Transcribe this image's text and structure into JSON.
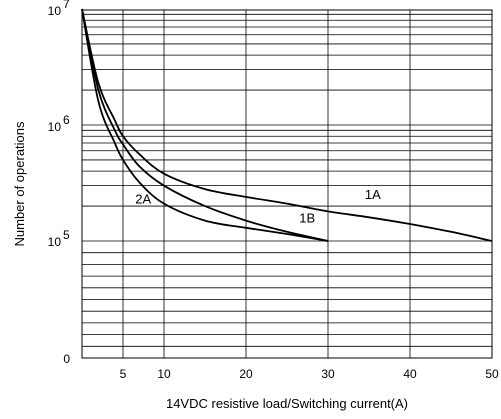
{
  "chart_data": {
    "type": "line",
    "xlabel": "14VDC resistive load/Switching current(A)",
    "ylabel": "Number of operations",
    "xlim": [
      0,
      50
    ],
    "x_ticks": [
      "5",
      "10",
      "20",
      "30",
      "40",
      "50"
    ],
    "y_scale": "log",
    "y_ticks": [
      {
        "base": "10",
        "exp": "7"
      },
      {
        "base": "10",
        "exp": "6"
      },
      {
        "base": "10",
        "exp": "5"
      }
    ],
    "y_zero_label": "0",
    "grid": true,
    "series": [
      {
        "name": "1A",
        "x": [
          0,
          2,
          4,
          5,
          7,
          10,
          15,
          20,
          25,
          30,
          35,
          40,
          45,
          50
        ],
        "y": [
          10000000,
          2300000,
          1100000,
          800000,
          560000,
          380000,
          280000,
          240000,
          210000,
          180000,
          160000,
          140000,
          120000,
          100000
        ]
      },
      {
        "name": "1B",
        "x": [
          0,
          2,
          4,
          5,
          7,
          10,
          15,
          20,
          25,
          30
        ],
        "y": [
          10000000,
          2000000,
          900000,
          680000,
          440000,
          300000,
          200000,
          150000,
          120000,
          100000
        ]
      },
      {
        "name": "2A",
        "x": [
          0,
          2,
          4,
          5,
          7,
          10,
          15,
          20,
          25,
          30
        ],
        "y": [
          10000000,
          1600000,
          700000,
          500000,
          320000,
          210000,
          150000,
          130000,
          115000,
          100000
        ]
      }
    ],
    "annotations": [
      "1A",
      "1B",
      "2A"
    ]
  }
}
